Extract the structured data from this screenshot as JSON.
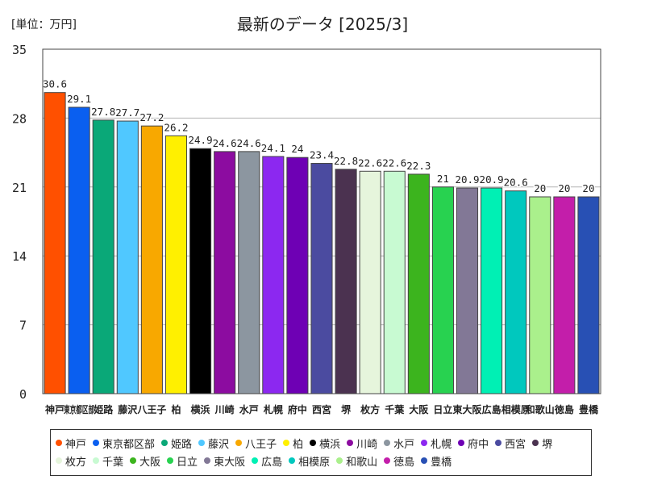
{
  "unit_label": "[単位：万円]",
  "title": "最新のデータ [2025/3]",
  "chart_data": {
    "type": "bar",
    "title": "最新のデータ [2025/3]",
    "ylabel": "単位：万円",
    "ylim": [
      0,
      35
    ],
    "yticks": [
      0,
      7,
      14,
      21,
      28,
      35
    ],
    "grid": true,
    "legend_position": "bottom",
    "categories": [
      "神戸",
      "東京都区部",
      "姫路",
      "藤沢",
      "八王子",
      "柏",
      "横浜",
      "川崎",
      "水戸",
      "札幌",
      "府中",
      "西宮",
      "堺",
      "枚方",
      "千葉",
      "大阪",
      "日立",
      "東大阪",
      "広島",
      "相模原",
      "和歌山",
      "徳島",
      "豊橋"
    ],
    "values": [
      30.6,
      29.1,
      27.8,
      27.7,
      27.2,
      26.2,
      24.9,
      24.6,
      24.6,
      24.1,
      24,
      23.4,
      22.8,
      22.6,
      22.6,
      22.3,
      21,
      20.9,
      20.9,
      20.6,
      20,
      20,
      20
    ],
    "value_labels": [
      "30.6",
      "29.1",
      "27.8",
      "27.7",
      "27.2",
      "26.2",
      "24.9",
      "24.6",
      "24.6",
      "24.1",
      "24",
      "23.4",
      "22.8",
      "22.6",
      "22.6",
      "22.3",
      "21",
      "20.9",
      "20.9",
      "20.6",
      "20",
      "20",
      "20"
    ],
    "colors": [
      "#ff5000",
      "#0a5ff0",
      "#0aa878",
      "#50c8ff",
      "#f8a800",
      "#fff000",
      "#000000",
      "#8c0ca0",
      "#8c96a0",
      "#8c28f0",
      "#6e00b4",
      "#4b4ba0",
      "#4b3250",
      "#e6f5dc",
      "#c8fad2",
      "#3cb41e",
      "#28d250",
      "#827896",
      "#00f0b4",
      "#00c8be",
      "#aaf08c",
      "#c31eaa",
      "#2850b4"
    ]
  }
}
